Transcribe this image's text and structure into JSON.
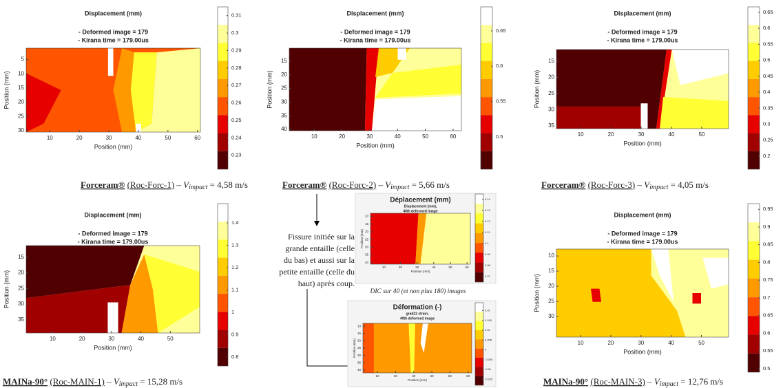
{
  "panels": [
    {
      "title": "Displacement (mm)",
      "subtitle": [
        "- Deformed image = 179",
        "- Kirana time = 179.00us"
      ],
      "xlabel": "Position (mm)",
      "ylabel": "Position (mm)",
      "xlim": [
        2,
        61
      ],
      "ylim": [
        1,
        30.5
      ],
      "xticks": [
        10,
        20,
        30,
        40,
        50,
        60
      ],
      "yticks": [
        5,
        10,
        15,
        20,
        25,
        30
      ],
      "clim": [
        0.222,
        0.315
      ],
      "cticks": [
        0.23,
        0.24,
        0.25,
        0.26,
        0.27,
        0.28,
        0.29,
        0.3,
        0.31
      ],
      "caption": {
        "material": "Forceram®",
        "specimen": "(Roc-Forc-1)",
        "dash": "–",
        "symbol": "V",
        "subscript": "impact",
        "value": "= 4,58 m/s"
      }
    },
    {
      "title": "Displacement (mm)",
      "subtitle": [
        "- Deformed image = 179",
        "- Kirana time = 179.00us"
      ],
      "xlabel": "Position (mm)",
      "ylabel": "Position (mm)",
      "xlim": [
        1,
        63
      ],
      "ylim": [
        10.2,
        40.5
      ],
      "xticks": [
        10,
        20,
        30,
        40,
        50,
        60
      ],
      "yticks": [
        15,
        20,
        25,
        30,
        35,
        40
      ],
      "clim": [
        0.454,
        0.684
      ],
      "cticks": [
        0.5,
        0.55,
        0.6,
        0.65
      ],
      "caption": {
        "material": "Forceram®",
        "specimen": "(Roc-Forc-2)",
        "dash": "–",
        "symbol": "V",
        "subscript": "impact",
        "value": "= 5,66 m/s"
      }
    },
    {
      "title": "Displacement (mm)",
      "subtitle": [
        "- Deformed image = 179",
        "- Kirana time = 179.00us"
      ],
      "xlabel": "Position (mm)",
      "ylabel": "Position (mm)",
      "xlim": [
        2,
        58.9
      ],
      "ylim": [
        11.4,
        35.9
      ],
      "xticks": [
        10,
        20,
        30,
        40,
        50
      ],
      "yticks": [
        15,
        20,
        25,
        30,
        35
      ],
      "clim": [
        0.159,
        0.667
      ],
      "cticks": [
        0.2,
        0.25,
        0.3,
        0.35,
        0.4,
        0.45,
        0.5,
        0.55,
        0.6,
        0.65
      ],
      "caption": {
        "material": "Forceram®",
        "specimen": "(Roc-Forc-3)",
        "dash": "–",
        "symbol": "V",
        "subscript": "impact",
        "value": "= 4,05 m/s"
      }
    },
    {
      "title": "Displacement (mm)",
      "subtitle": [
        "- Deformed image = 179",
        "- Kirana time = 179.00us"
      ],
      "xlabel": "Position (mm)",
      "ylabel": "Position (mm)",
      "xlim": [
        1,
        60
      ],
      "ylim": [
        11.3,
        39.2
      ],
      "xticks": [
        10,
        20,
        30,
        40,
        50
      ],
      "yticks": [
        15,
        20,
        25,
        30,
        35
      ],
      "clim": [
        0.76,
        1.486
      ],
      "cticks": [
        0.8,
        0.9,
        1,
        1.1,
        1.2,
        1.3,
        1.4
      ],
      "caption": {
        "material": "MAINa-90°",
        "specimen": "(Roc-MAIN-1)",
        "dash": "–",
        "symbol": "V",
        "subscript": "impact",
        "value": "= 15,28 m/s"
      }
    },
    {
      "title": "Displacement (mm)",
      "subtitle": [
        "- Deformed image = 179",
        "- Kirana time = 179.00us"
      ],
      "xlabel": "Position (mm)",
      "ylabel": "Position (mm)",
      "xlim": [
        2,
        59
      ],
      "ylim": [
        7.7,
        36.8
      ],
      "xticks": [
        10,
        20,
        30,
        40,
        50
      ],
      "yticks": [
        10,
        15,
        20,
        25,
        30
      ],
      "clim": [
        0.49,
        0.966
      ],
      "cticks": [
        0.5,
        0.55,
        0.6,
        0.65,
        0.7,
        0.75,
        0.8,
        0.85,
        0.9,
        0.95
      ],
      "caption": {
        "material": "MAINa-90°",
        "specimen": "(Roc-MAIN-3)",
        "dash": "–",
        "symbol": "V",
        "subscript": "impact",
        "value": "= 12,76 m/s"
      }
    }
  ],
  "middle": {
    "note": [
      "Fissure initiée sur la",
      "grande entaille (celle",
      "du bas) et aussi sur la",
      "petite entaille (celle du",
      "haut) après coup."
    ],
    "caption": "DIC sur 40 (et non plus 180) images",
    "insets": [
      {
        "title": "Déplacement (mm)",
        "subtitle": [
          "Displacement (mm),",
          "40th deformed image"
        ],
        "xlabel": "Position (mm)",
        "ylabel": "Position (mm)",
        "xlim": [
          2,
          62
        ],
        "ylim": [
          8,
          41
        ],
        "xticks": [
          10,
          20,
          30,
          40,
          50,
          60
        ],
        "yticks": [
          10,
          15,
          20,
          25,
          30,
          35,
          40
        ],
        "clim": [
          0.065,
          0.145
        ],
        "cticks": [
          0.07,
          0.08,
          0.09,
          0.1,
          0.11,
          0.12,
          0.13,
          0.14
        ]
      },
      {
        "title": "Déformation (-)",
        "subtitle": [
          "grad22 strain,",
          "40th deformed image"
        ],
        "xlabel": "Position (mm)",
        "ylabel": "Position (mm)",
        "xlim": [
          2,
          62
        ],
        "ylim": [
          8,
          42
        ],
        "xticks": [
          10,
          20,
          30,
          40,
          50,
          60
        ],
        "yticks": [
          10,
          15,
          20,
          25,
          30,
          35,
          40
        ],
        "clim": [
          -0.018,
          0.024
        ],
        "cticks": [
          -0.015,
          -0.01,
          -0.005,
          0,
          0.005,
          0.01,
          0.015,
          0.02
        ]
      }
    ]
  }
}
